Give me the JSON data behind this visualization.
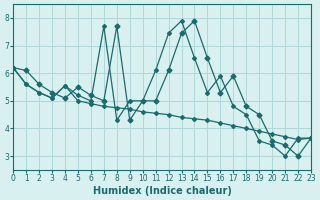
{
  "xlabel": "Humidex (Indice chaleur)",
  "bg_color": "#d8f0f0",
  "line_color": "#1a6b6b",
  "grid_color": "#b0d8d8",
  "xlim": [
    0,
    23
  ],
  "ylim": [
    2.5,
    8.5
  ],
  "xticks": [
    0,
    1,
    2,
    3,
    4,
    5,
    6,
    7,
    8,
    9,
    10,
    11,
    12,
    13,
    14,
    15,
    16,
    17,
    18,
    19,
    20,
    21,
    22,
    23
  ],
  "yticks": [
    3,
    4,
    5,
    6,
    7,
    8
  ],
  "series": [
    [
      6.2,
      6.1,
      5.6,
      5.3,
      5.1,
      5.5,
      5.2,
      5.0,
      7.7,
      4.3,
      5.0,
      5.0,
      6.1,
      7.45,
      7.9,
      6.55,
      5.3,
      5.9,
      4.8,
      4.5,
      3.55,
      3.4,
      3.0,
      3.65
    ],
    [
      6.2,
      5.6,
      5.3,
      5.1,
      5.55,
      5.0,
      4.9,
      4.8,
      4.75,
      4.7,
      4.6,
      4.55,
      4.5,
      4.4,
      4.35,
      4.3,
      4.2,
      4.1,
      4.0,
      3.9,
      3.8,
      3.7,
      3.6,
      3.65
    ],
    [
      6.2,
      5.6,
      5.3,
      5.1,
      5.55,
      5.2,
      5.0,
      7.7,
      4.3,
      5.0,
      5.0,
      6.1,
      7.45,
      7.9,
      6.55,
      5.3,
      5.9,
      4.8,
      4.5,
      3.55,
      3.4,
      3.0,
      3.65,
      3.65
    ]
  ]
}
